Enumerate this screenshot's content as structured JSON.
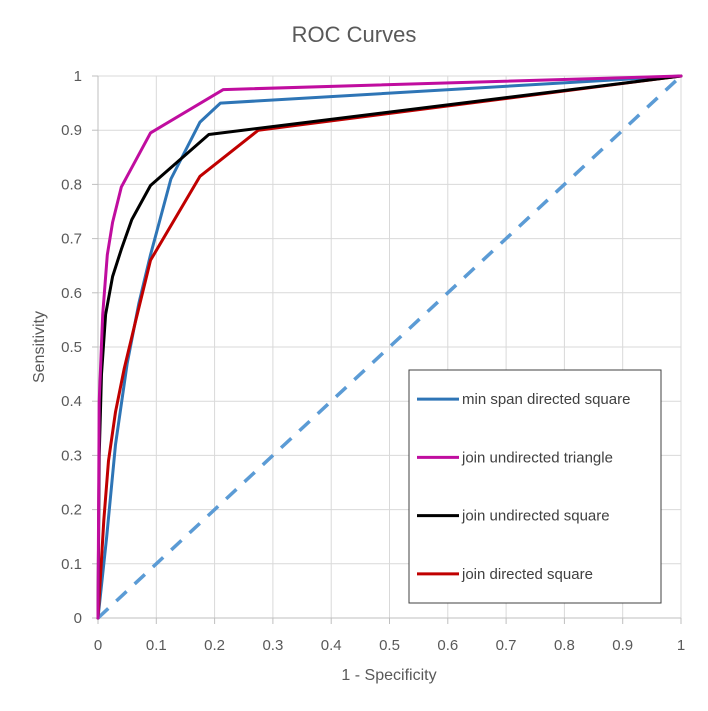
{
  "chart_data": {
    "type": "line",
    "title": "ROC Curves",
    "xlabel": "1 - Specificity",
    "ylabel": "Sensitivity",
    "xlim": [
      0,
      1
    ],
    "ylim": [
      0,
      1
    ],
    "x_ticks": [
      "0",
      "0.1",
      "0.2",
      "0.3",
      "0.4",
      "0.5",
      "0.6",
      "0.7",
      "0.8",
      "0.9",
      "1"
    ],
    "y_ticks": [
      "0",
      "0.1",
      "0.2",
      "0.3",
      "0.4",
      "0.5",
      "0.6",
      "0.7",
      "0.8",
      "0.9",
      "1"
    ],
    "grid": true,
    "legend_position": "bottom-right",
    "series": [
      {
        "name": "min span directed square",
        "color": "#2E75B6",
        "points": [
          [
            0,
            0
          ],
          [
            0.015,
            0.15
          ],
          [
            0.03,
            0.32
          ],
          [
            0.05,
            0.47
          ],
          [
            0.07,
            0.58
          ],
          [
            0.09,
            0.67
          ],
          [
            0.125,
            0.81
          ],
          [
            0.175,
            0.915
          ],
          [
            0.21,
            0.95
          ],
          [
            1,
            1
          ]
        ]
      },
      {
        "name": "join undirected triangle",
        "color": "#C00D9F",
        "points": [
          [
            0,
            0
          ],
          [
            0.002,
            0.4
          ],
          [
            0.008,
            0.56
          ],
          [
            0.016,
            0.67
          ],
          [
            0.025,
            0.73
          ],
          [
            0.04,
            0.795
          ],
          [
            0.09,
            0.895
          ],
          [
            0.215,
            0.975
          ],
          [
            1,
            1
          ]
        ]
      },
      {
        "name": "join undirected square",
        "color": "#000000",
        "points": [
          [
            0,
            0
          ],
          [
            0.002,
            0.3
          ],
          [
            0.006,
            0.45
          ],
          [
            0.013,
            0.56
          ],
          [
            0.025,
            0.63
          ],
          [
            0.04,
            0.68
          ],
          [
            0.058,
            0.735
          ],
          [
            0.09,
            0.798
          ],
          [
            0.19,
            0.892
          ],
          [
            1,
            1
          ]
        ]
      },
      {
        "name": "join directed square",
        "color": "#C00000",
        "points": [
          [
            0,
            0
          ],
          [
            0.01,
            0.18
          ],
          [
            0.018,
            0.29
          ],
          [
            0.03,
            0.38
          ],
          [
            0.045,
            0.46
          ],
          [
            0.065,
            0.55
          ],
          [
            0.09,
            0.66
          ],
          [
            0.175,
            0.815
          ],
          [
            0.275,
            0.9
          ],
          [
            1,
            1
          ]
        ]
      },
      {
        "color": "#5B9BD5",
        "dashed": true,
        "points": [
          [
            0,
            0
          ],
          [
            1,
            1
          ]
        ]
      }
    ]
  }
}
